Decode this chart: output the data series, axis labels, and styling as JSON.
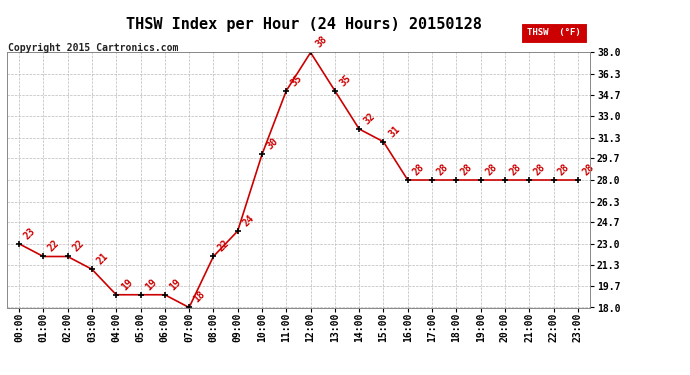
{
  "title": "THSW Index per Hour (24 Hours) 20150128",
  "copyright": "Copyright 2015 Cartronics.com",
  "legend_label": "THSW  (°F)",
  "hours": [
    0,
    1,
    2,
    3,
    4,
    5,
    6,
    7,
    8,
    9,
    10,
    11,
    12,
    13,
    14,
    15,
    16,
    17,
    18,
    19,
    20,
    21,
    22,
    23
  ],
  "values": [
    23,
    22,
    22,
    21,
    19,
    19,
    19,
    18,
    22,
    24,
    30,
    35,
    38,
    35,
    32,
    31,
    28,
    28,
    28,
    28,
    28,
    28,
    28,
    28
  ],
  "xlabels": [
    "00:00",
    "01:00",
    "02:00",
    "03:00",
    "04:00",
    "05:00",
    "06:00",
    "07:00",
    "08:00",
    "09:00",
    "10:00",
    "11:00",
    "12:00",
    "13:00",
    "14:00",
    "15:00",
    "16:00",
    "17:00",
    "18:00",
    "19:00",
    "20:00",
    "21:00",
    "22:00",
    "23:00"
  ],
  "ylim": [
    18.0,
    38.0
  ],
  "yticks": [
    18.0,
    19.7,
    21.3,
    23.0,
    24.7,
    26.3,
    28.0,
    29.7,
    31.3,
    33.0,
    34.7,
    36.3,
    38.0
  ],
  "line_color": "#cc0000",
  "marker_color": "#000000",
  "background_color": "#ffffff",
  "grid_color": "#bbbbbb",
  "title_fontsize": 11,
  "copyright_fontsize": 7,
  "label_fontsize": 7,
  "annotation_fontsize": 7,
  "legend_bg": "#cc0000",
  "legend_text_color": "#ffffff",
  "fig_width": 6.9,
  "fig_height": 3.75,
  "dpi": 100
}
